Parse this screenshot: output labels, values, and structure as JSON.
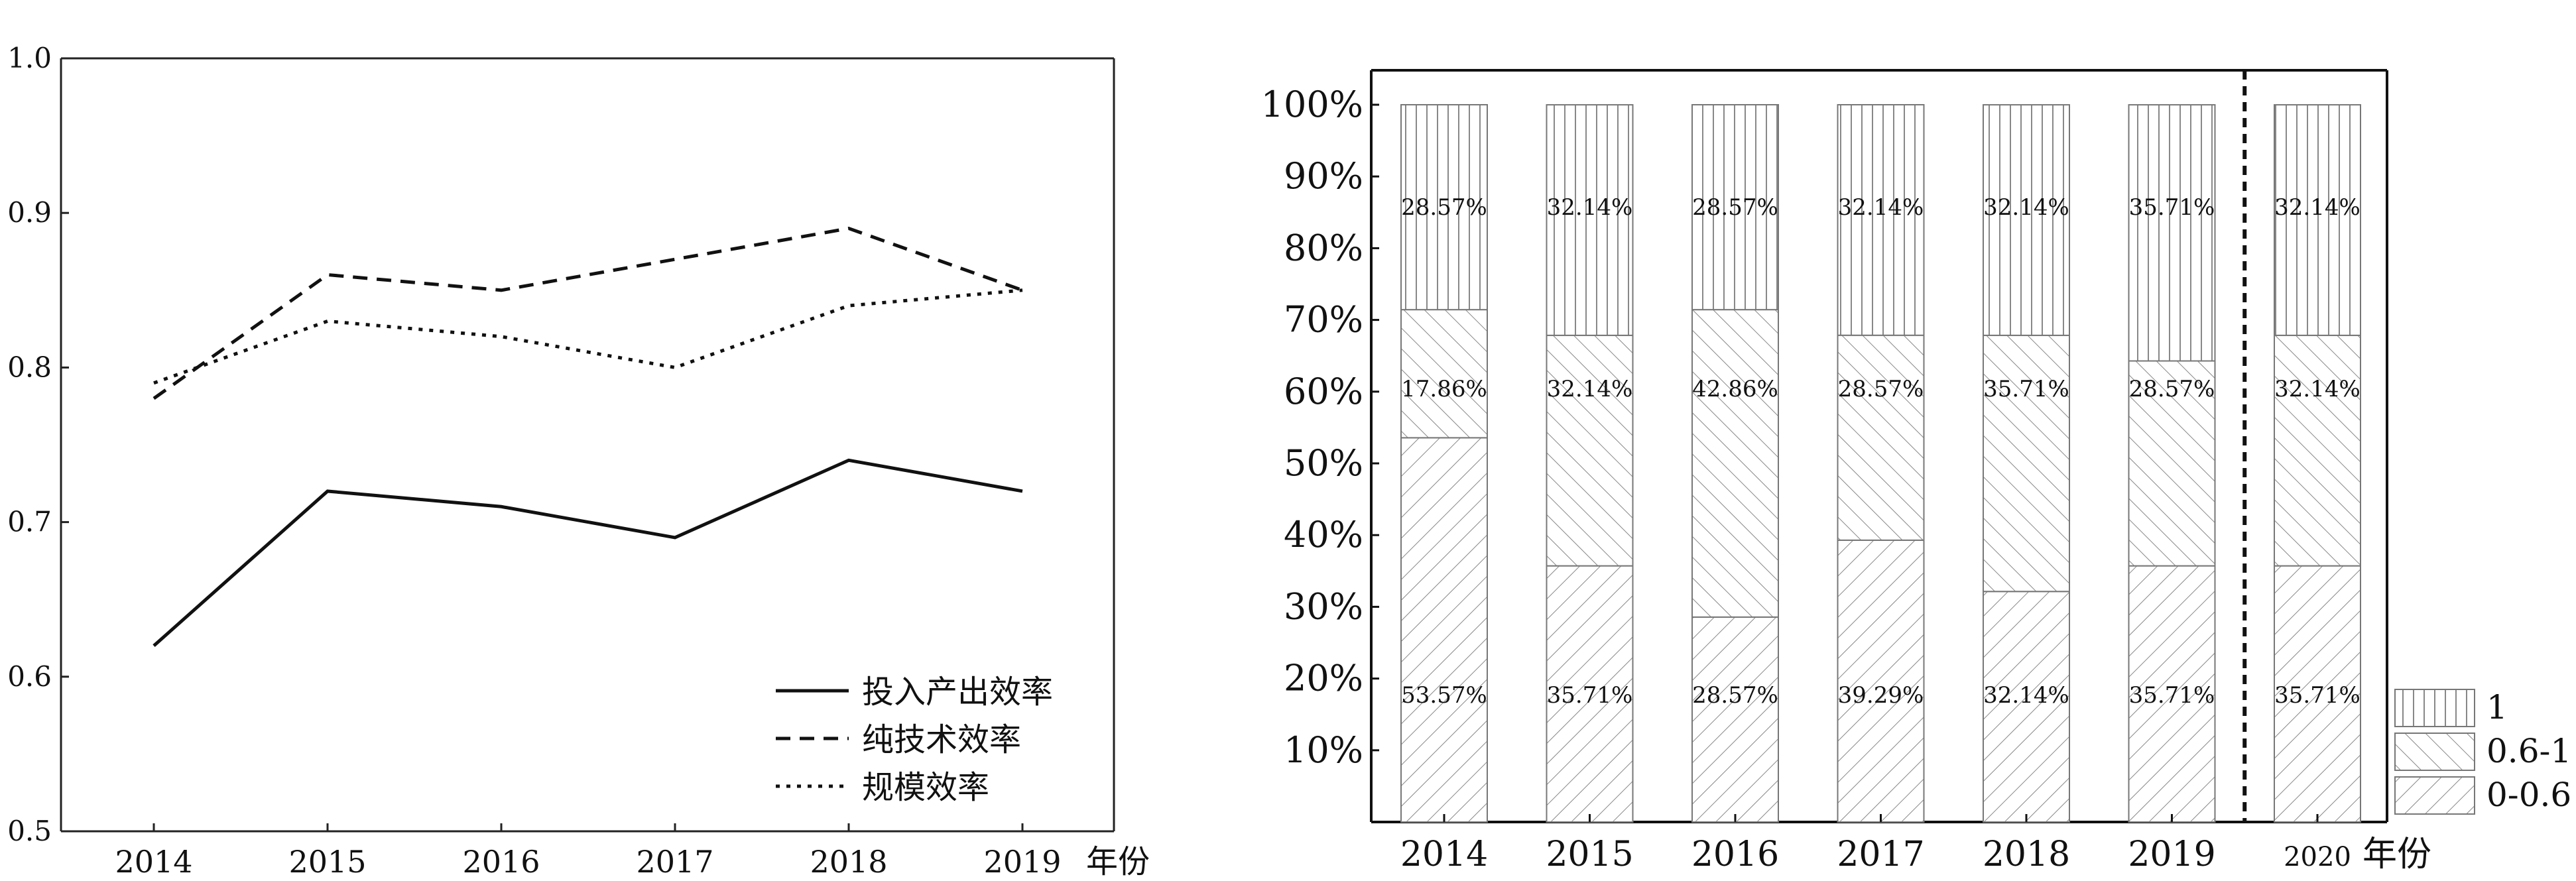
{
  "chart_data": [
    {
      "type": "line",
      "title": "",
      "xlabel_suffix": "年份",
      "ylabel": "",
      "categories": [
        "2014",
        "2015",
        "2016",
        "2017",
        "2018",
        "2019"
      ],
      "ylim": [
        0.5,
        1.0
      ],
      "yticks": [
        "0.5",
        "0.6",
        "0.7",
        "0.8",
        "0.9",
        "1.0"
      ],
      "legend_position": "bottom-right",
      "series": [
        {
          "name": "投入产出效率",
          "style": "solid",
          "values": [
            0.62,
            0.72,
            0.71,
            0.69,
            0.74,
            0.72
          ]
        },
        {
          "name": "纯技术效率",
          "style": "dashed",
          "values": [
            0.78,
            0.86,
            0.85,
            0.87,
            0.89,
            0.85
          ]
        },
        {
          "name": "规模效率",
          "style": "dotted",
          "values": [
            0.79,
            0.83,
            0.82,
            0.8,
            0.84,
            0.85
          ]
        }
      ]
    },
    {
      "type": "bar",
      "stacked": true,
      "title": "",
      "categories": [
        "2014",
        "2015",
        "2016",
        "2017",
        "2018",
        "2019",
        "2020"
      ],
      "xlabel_suffix": "年份",
      "yticks": [
        "10%",
        "20%",
        "30%",
        "40%",
        "50%",
        "60%",
        "70%",
        "80%",
        "90%",
        "100%"
      ],
      "ylim": [
        0,
        100
      ],
      "divider_after": "2019",
      "legend_position": "bottom-right",
      "series": [
        {
          "name": "0-0.6",
          "hatch": "diagonal-up",
          "values": [
            53.57,
            35.71,
            28.57,
            39.29,
            32.14,
            35.71,
            35.71
          ],
          "labels": [
            "53.57%",
            "35.71%",
            "28.57%",
            "39.29%",
            "32.14%",
            "35.71%",
            "35.71%"
          ]
        },
        {
          "name": "0.6-1",
          "hatch": "diagonal-down",
          "values": [
            17.86,
            32.14,
            42.86,
            28.57,
            35.71,
            28.57,
            32.14
          ],
          "labels": [
            "17.86%",
            "32.14%",
            "42.86%",
            "28.57%",
            "35.71%",
            "28.57%",
            "32.14%"
          ]
        },
        {
          "name": "1",
          "hatch": "vertical",
          "values": [
            28.57,
            32.14,
            28.57,
            32.14,
            32.14,
            35.71,
            32.14
          ],
          "labels": [
            "28.57%",
            "32.14%",
            "28.57%",
            "32.14%",
            "32.14%",
            "35.71%",
            "32.14%"
          ]
        }
      ]
    }
  ]
}
